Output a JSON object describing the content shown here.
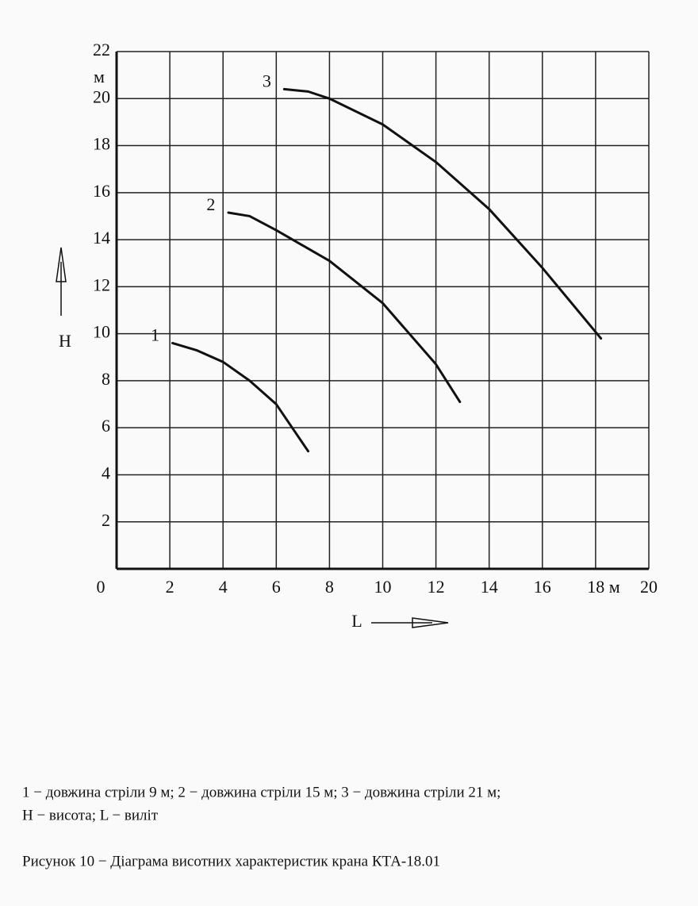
{
  "chart_data": {
    "type": "line",
    "x_label": "L",
    "y_label": "H",
    "y_unit": "м",
    "xlim": [
      0,
      20
    ],
    "ylim": [
      0,
      22
    ],
    "xticks": [
      0,
      2,
      4,
      6,
      8,
      10,
      12,
      14,
      16,
      {
        "value": 18,
        "label": "18 м"
      },
      20
    ],
    "yticks": [
      2,
      4,
      6,
      8,
      10,
      12,
      14,
      16,
      18,
      20,
      22
    ],
    "grid": true,
    "series": [
      {
        "name": "1",
        "color": "#111111",
        "x": [
          2.1,
          3,
          4,
          5,
          6,
          6.6,
          7.2
        ],
        "values": [
          9.6,
          9.3,
          8.8,
          8.0,
          7.0,
          6.0,
          5.0
        ]
      },
      {
        "name": "2",
        "color": "#111111",
        "x": [
          4.2,
          5,
          6,
          8,
          10,
          12,
          12.9
        ],
        "values": [
          15.15,
          15.0,
          14.4,
          13.1,
          11.3,
          8.7,
          7.1
        ]
      },
      {
        "name": "3",
        "color": "#111111",
        "x": [
          6.3,
          7.2,
          8,
          10,
          12,
          14,
          16,
          18.2
        ],
        "values": [
          20.4,
          20.3,
          20.0,
          18.9,
          17.3,
          15.3,
          12.8,
          9.8
        ]
      }
    ],
    "caption_lines": [
      "1 − довжина стріли 9 м; 2 − довжина стріли 15 м; 3 − довжина стріли 21 м;",
      "H − висота; L − виліт"
    ],
    "figure_title": "Рисунок 10 − Діаграма висотних характеристик крана КТА-18.01"
  }
}
